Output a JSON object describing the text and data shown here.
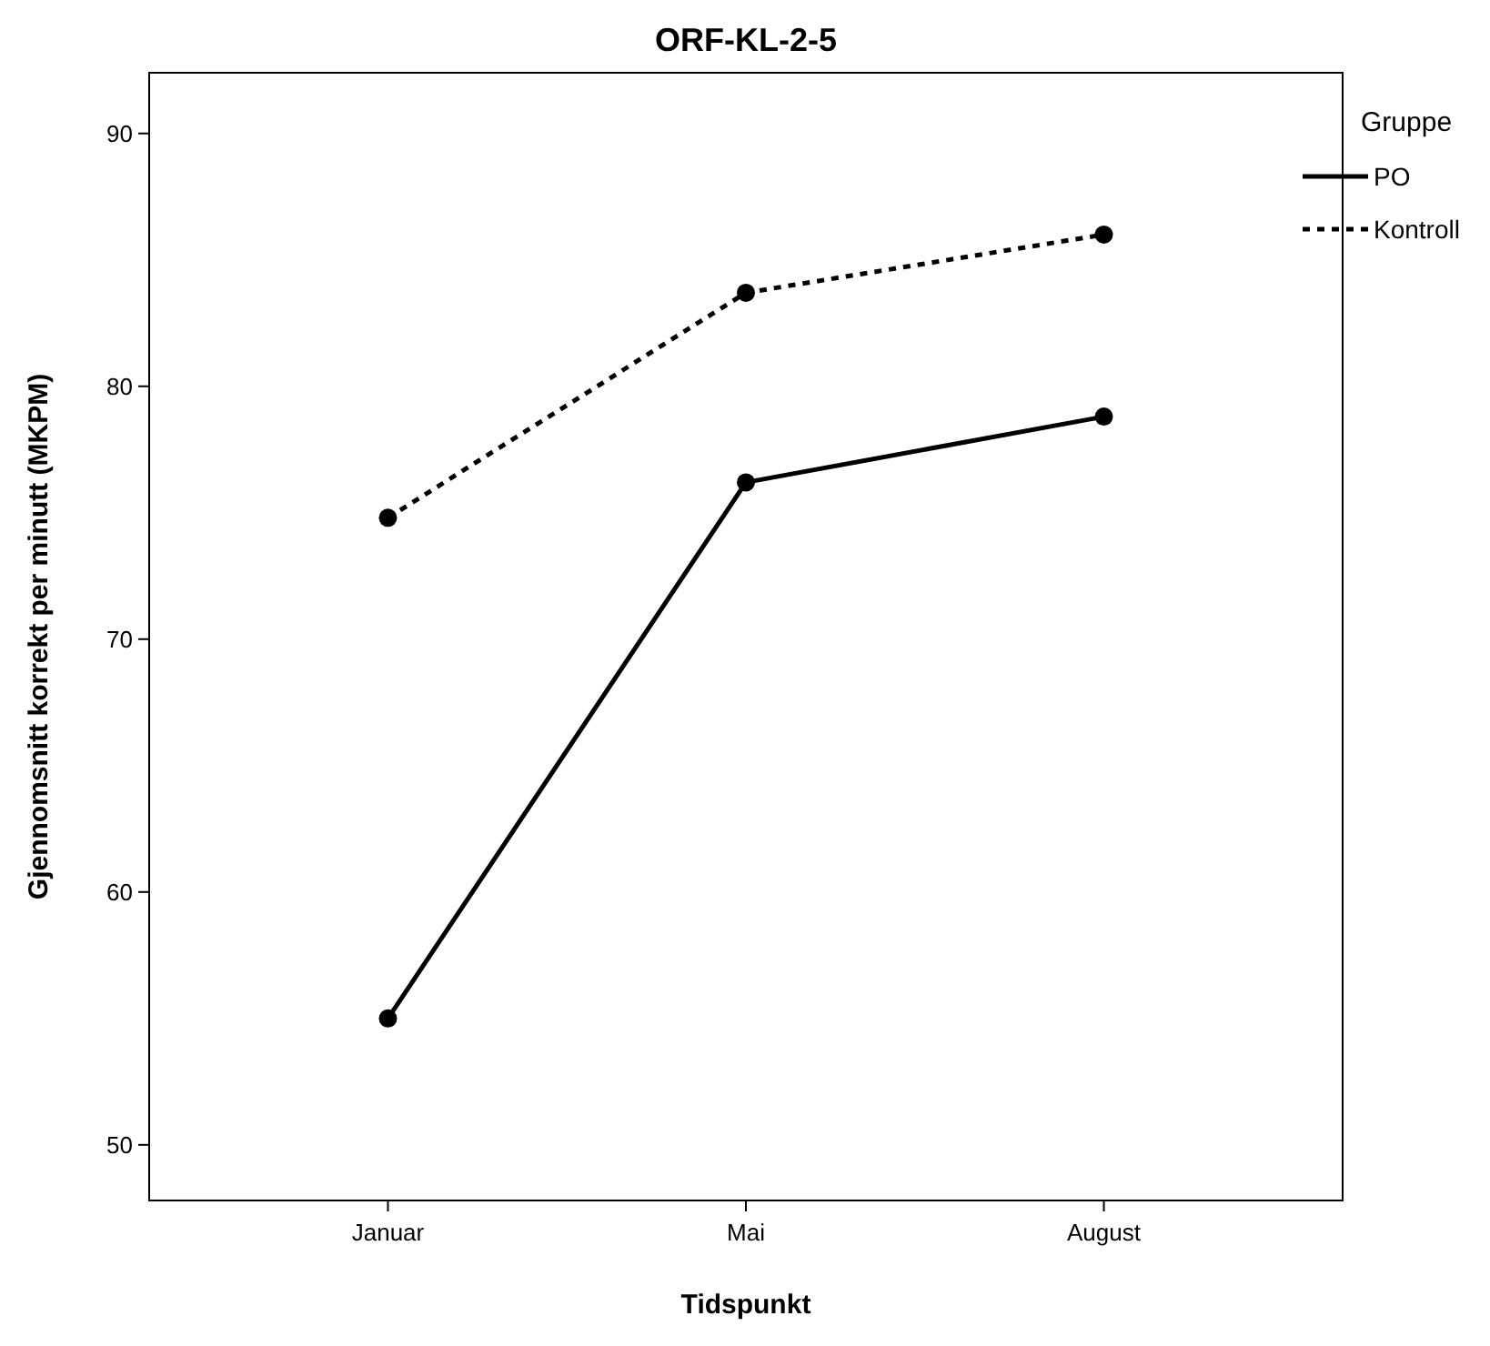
{
  "chart_data": {
    "type": "line",
    "title": "ORF-KL-2-5",
    "xlabel": "Tidspunkt",
    "ylabel": "Gjennomsnitt korrekt per minutt (MKPM)",
    "legend_title": "Gruppe",
    "categories": [
      "Januar",
      "Mai",
      "August"
    ],
    "series": [
      {
        "name": "PO",
        "color": "#000000",
        "line_style": "solid",
        "values": [
          55.0,
          76.2,
          78.8
        ]
      },
      {
        "name": "Kontroll",
        "color": "#000000",
        "line_style": "dotted",
        "values": [
          74.8,
          83.7,
          86.0
        ]
      }
    ],
    "ylim": [
      47.8,
      92.4
    ],
    "yticks": [
      50,
      60,
      70,
      80,
      90
    ],
    "grid": false,
    "legend": "top right",
    "marker": "circle"
  }
}
